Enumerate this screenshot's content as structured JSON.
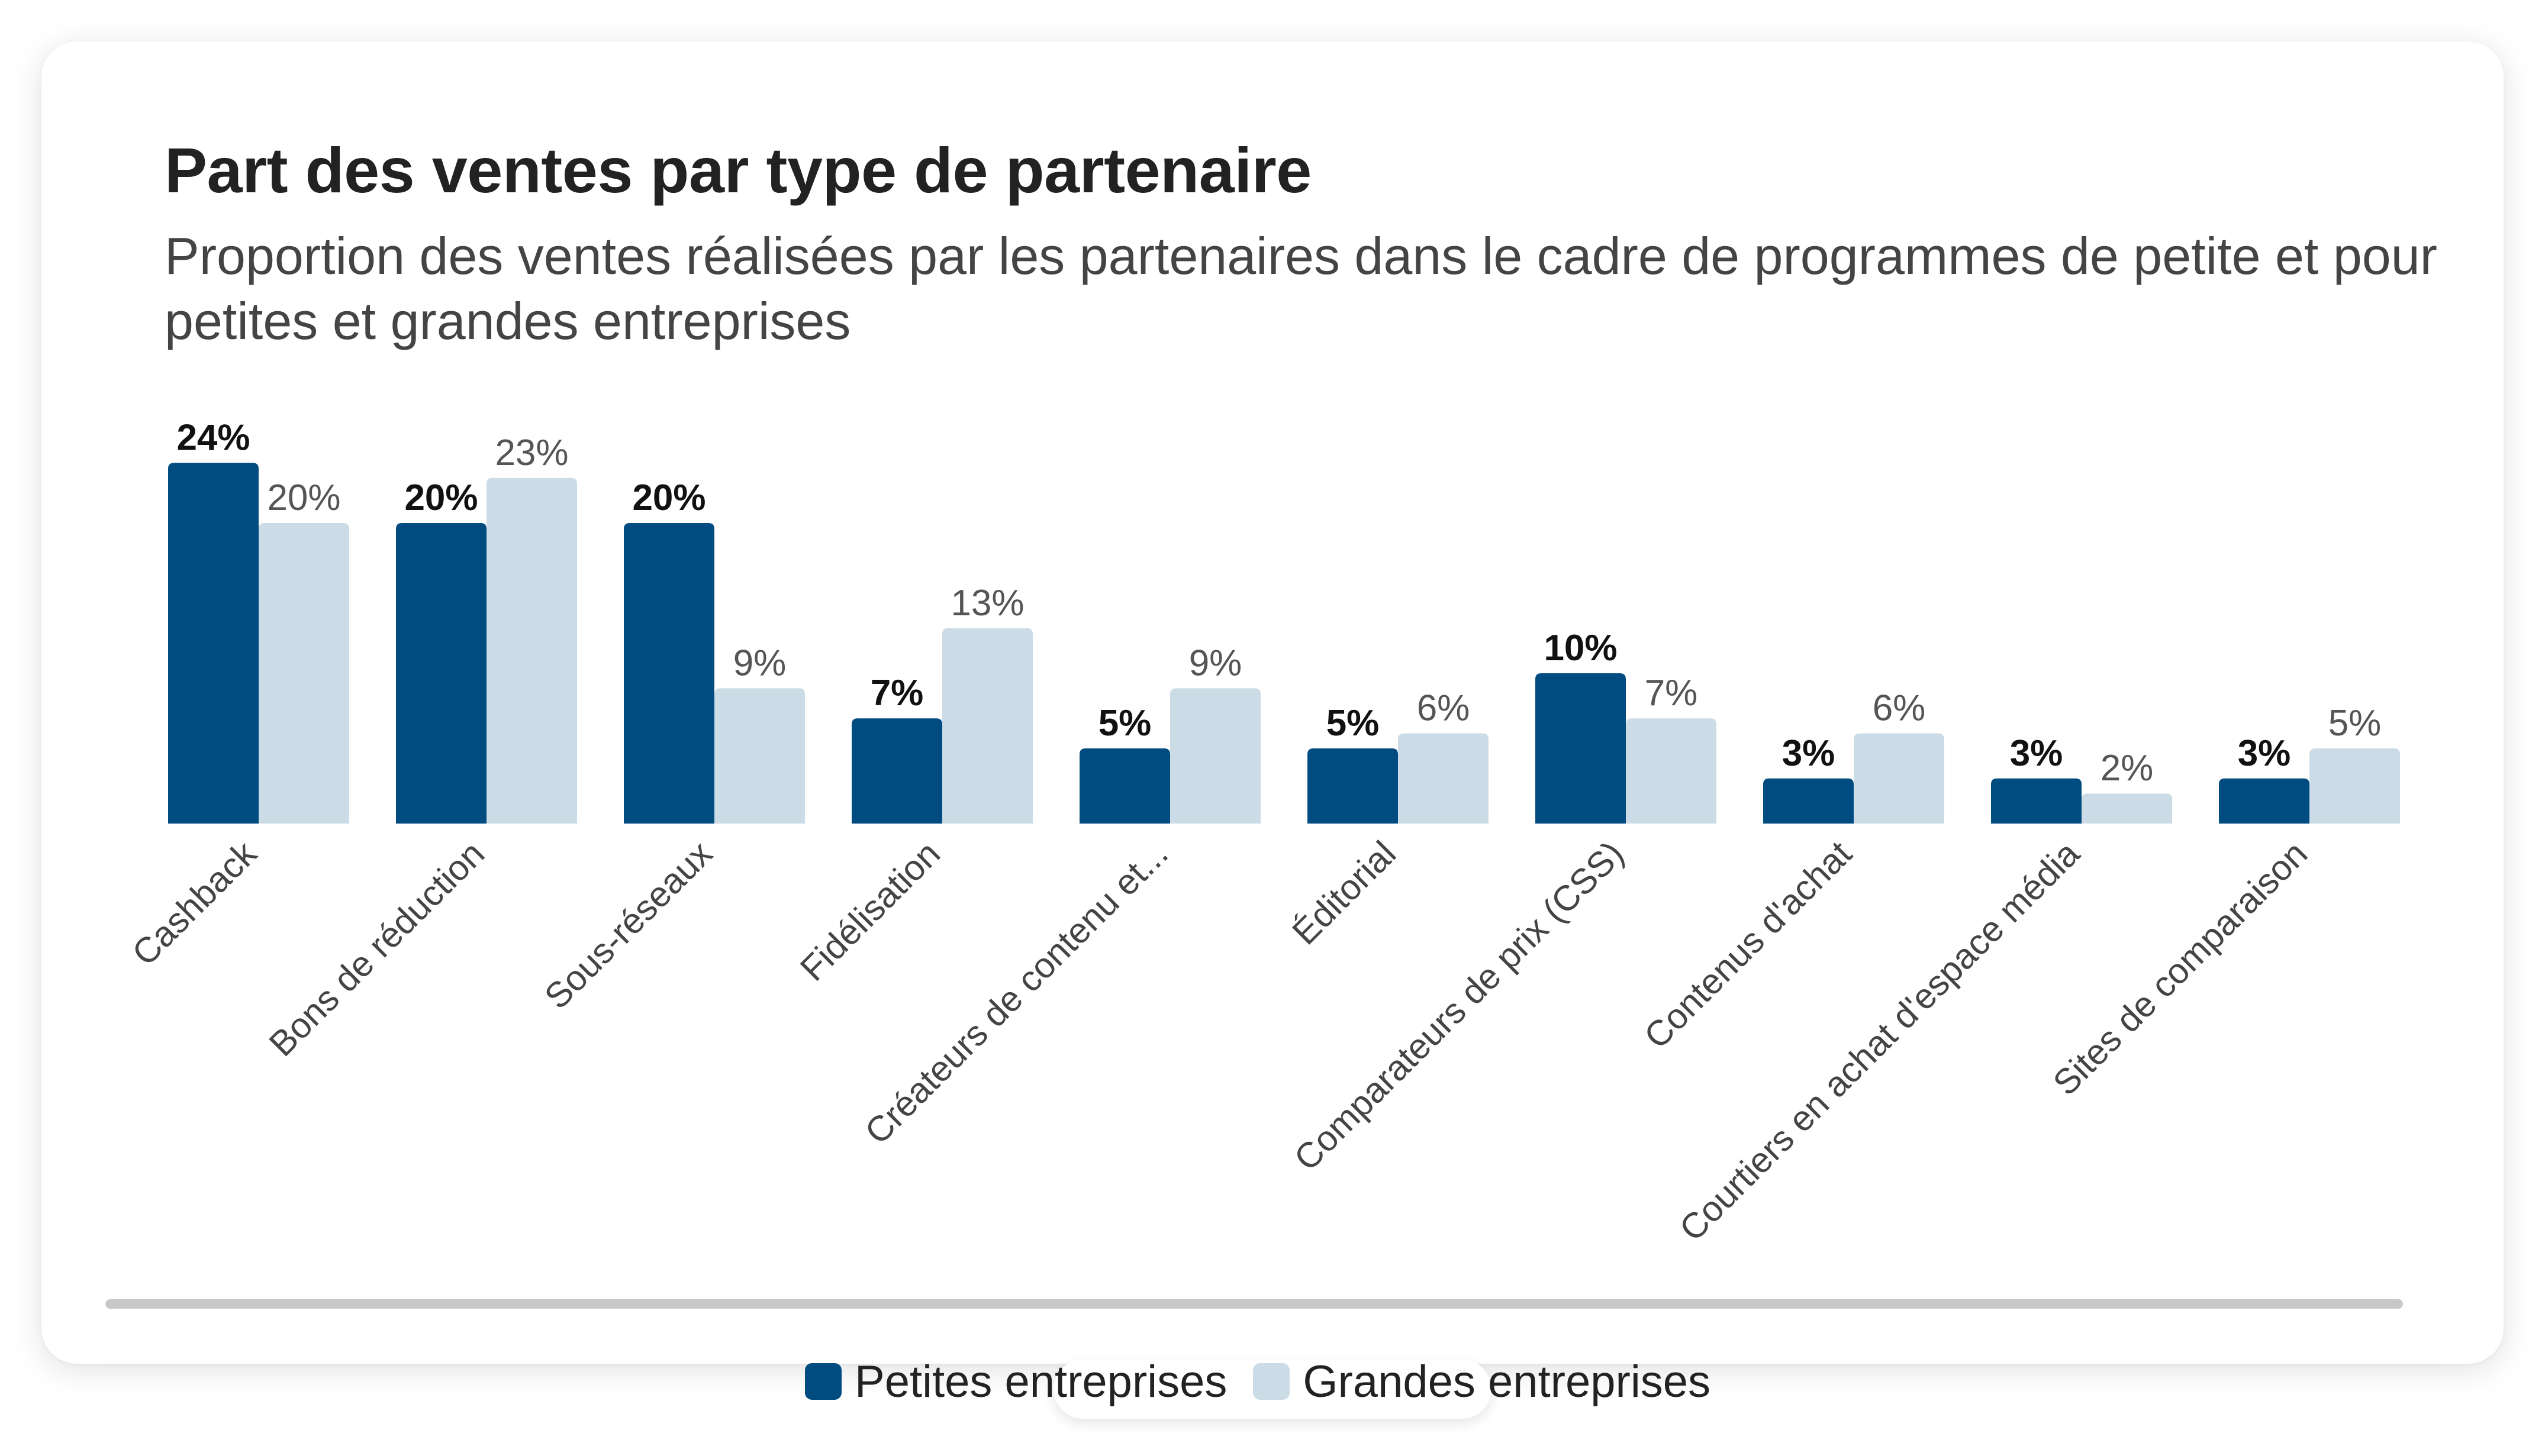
{
  "chart_data": {
    "type": "bar",
    "title": "Part des ventes par type de partenaire",
    "subtitle": "Proportion des ventes réalisées par les partenaires dans le cadre de programmes de petite et pour petites et grandes entreprises",
    "xlabel": "",
    "ylabel": "",
    "ylim": [
      0,
      25
    ],
    "grid": false,
    "legend_position": "bottom",
    "categories": [
      "Cashback",
      "Bons de réduction",
      "Sous-réseaux",
      "Fidélisation",
      "Créateurs de contenu et...",
      "Éditorial",
      "Comparateurs de prix (CSS)",
      "Contenus d'achat",
      "Courtiers en achat d'espace média",
      "Sites de comparaison"
    ],
    "series": [
      {
        "name": "Petites entreprises",
        "color": "#004b7f",
        "values": [
          24,
          20,
          20,
          7,
          5,
          5,
          10,
          3,
          3,
          3
        ],
        "labels": [
          "24%",
          "20%",
          "20%",
          "7%",
          "5%",
          "5%",
          "10%",
          "3%",
          "3%",
          "3%"
        ]
      },
      {
        "name": "Grandes entreprises",
        "color": "#ccdce7",
        "values": [
          20,
          23,
          9,
          13,
          9,
          6,
          7,
          6,
          2,
          5
        ],
        "labels": [
          "20%",
          "23%",
          "9%",
          "13%",
          "9%",
          "6%",
          "7%",
          "6%",
          "2%",
          "5%"
        ]
      }
    ]
  },
  "legend": {
    "items": [
      {
        "label": "Petites entreprises",
        "color": "#004b7f"
      },
      {
        "label": "Grandes entreprises",
        "color": "#ccdce7"
      }
    ]
  }
}
